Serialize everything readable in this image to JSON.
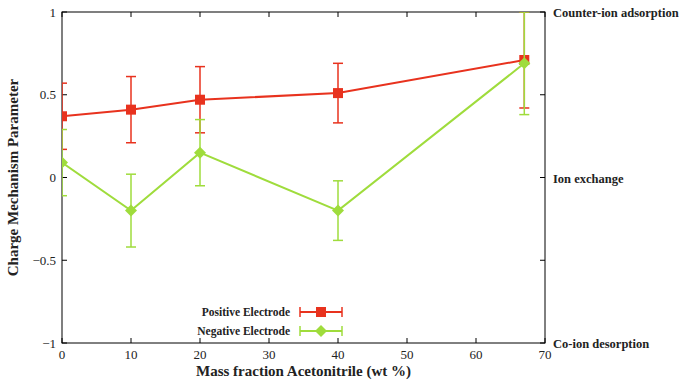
{
  "chart_data": {
    "type": "line",
    "x_label": "Mass fraction Acetonitrile (wt %)",
    "y_label": "Charge Mechanism Parameter",
    "x": [
      0,
      10,
      20,
      40,
      67
    ],
    "xlim": [
      0,
      70
    ],
    "xticks": [
      0,
      10,
      20,
      30,
      40,
      50,
      60,
      70
    ],
    "ylim": [
      -1,
      1
    ],
    "yticks": [
      {
        "value": -1,
        "label": "−1"
      },
      {
        "value": -0.5,
        "label": "−0.5"
      },
      0,
      0.5,
      1
    ],
    "grid": false,
    "legend": "bottom",
    "series": [
      {
        "name": "Positive Electrode",
        "color": "#e8321e",
        "marker": "square",
        "line_style": "solid",
        "values": [
          0.37,
          0.41,
          0.47,
          0.51,
          0.71
        ],
        "errors": [
          0.2,
          0.2,
          0.2,
          0.18,
          0.29
        ]
      },
      {
        "name": "Negative Electrode",
        "color": "#9fdc3c",
        "marker": "diamond",
        "line_style": "solid",
        "values": [
          0.09,
          -0.2,
          0.15,
          -0.2,
          0.69
        ],
        "errors": [
          0.2,
          0.22,
          0.2,
          0.18,
          0.31
        ]
      }
    ],
    "annotations": [
      {
        "text": "Counter-ion adsorption",
        "y": 1
      },
      {
        "text": "Ion exchange",
        "y": 0
      },
      {
        "text": "Co-ion desorption",
        "y": -1
      }
    ]
  }
}
